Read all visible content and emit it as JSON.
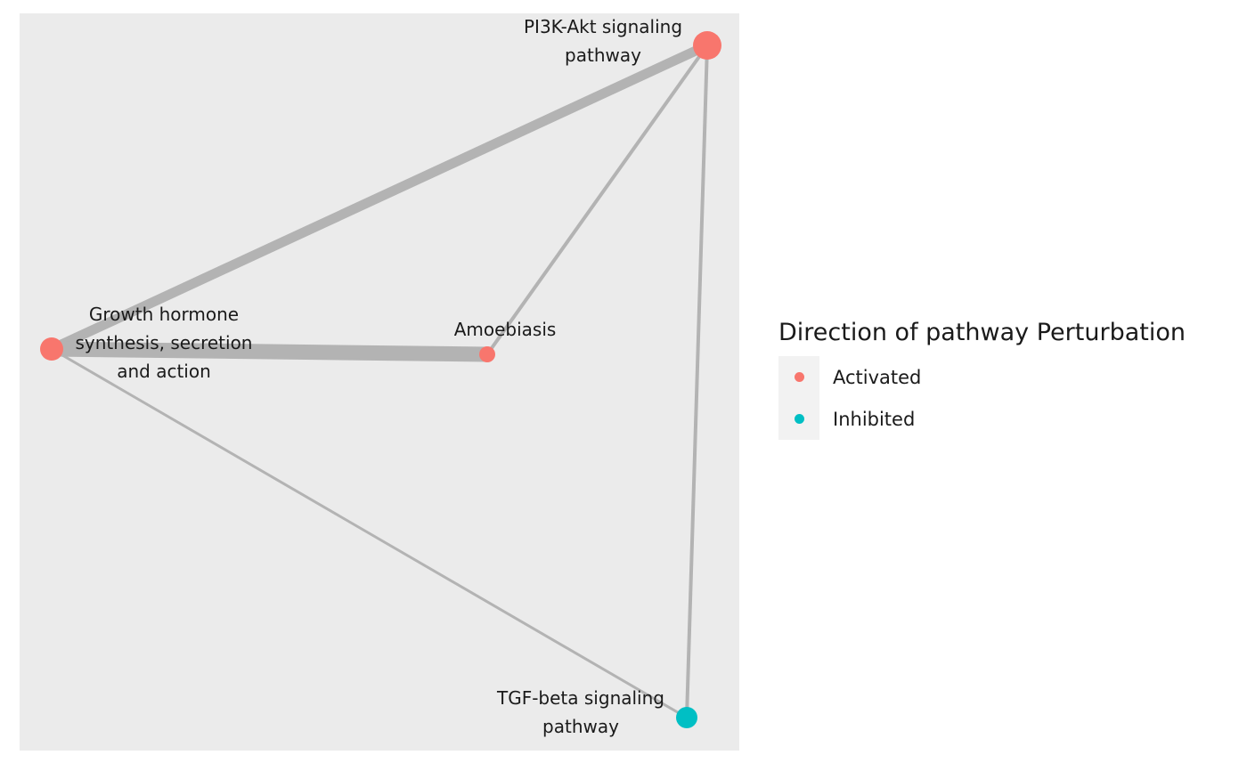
{
  "diagram": {
    "nodes": [
      {
        "id": "pi3k",
        "label_lines": [
          "PI3K-Akt signaling",
          "pathway"
        ],
        "direction": "Activated"
      },
      {
        "id": "growth",
        "label_lines": [
          "Growth hormone",
          "synthesis, secretion",
          "and action"
        ],
        "direction": "Activated"
      },
      {
        "id": "amoeb",
        "label_lines": [
          "Amoebiasis"
        ],
        "direction": "Activated"
      },
      {
        "id": "tgf",
        "label_lines": [
          "TGF-beta signaling",
          "pathway"
        ],
        "direction": "Inhibited"
      }
    ],
    "edges": [
      {
        "source": "pi3k",
        "target": "growth"
      },
      {
        "source": "pi3k",
        "target": "amoeb"
      },
      {
        "source": "pi3k",
        "target": "tgf"
      },
      {
        "source": "growth",
        "target": "amoeb"
      },
      {
        "source": "growth",
        "target": "tgf"
      }
    ]
  },
  "legend": {
    "title": "Direction of pathway Perturbation",
    "items": [
      {
        "label": "Activated",
        "color": "#F8766D"
      },
      {
        "label": "Inhibited",
        "color": "#00BFC4"
      }
    ]
  },
  "colors": {
    "edge": "#b3b3b3",
    "panel": "#ebebeb"
  }
}
